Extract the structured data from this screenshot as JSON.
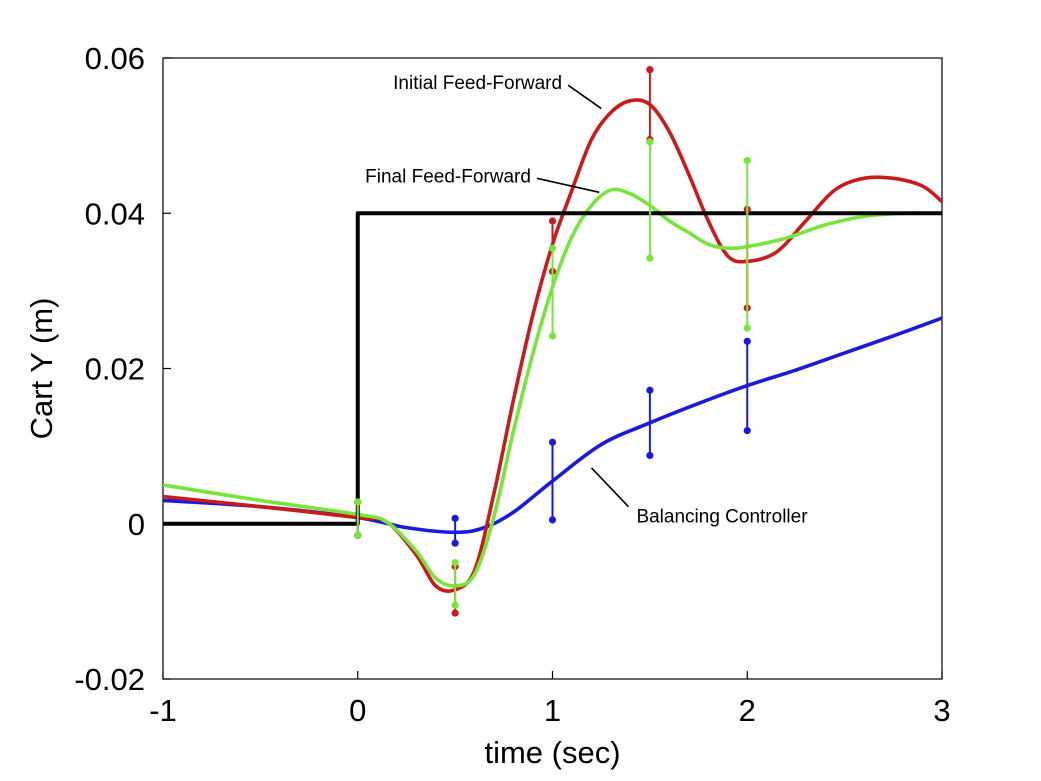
{
  "chart_data": {
    "type": "line",
    "xlabel": "time (sec)",
    "ylabel": "Cart Y (m)",
    "xlim": [
      -1,
      3
    ],
    "ylim": [
      -0.02,
      0.06
    ],
    "x_ticks": [
      {
        "value": -1,
        "label": "-1"
      },
      {
        "value": 0,
        "label": "0"
      },
      {
        "value": 1,
        "label": "1"
      },
      {
        "value": 2,
        "label": "2"
      },
      {
        "value": 3,
        "label": "3"
      }
    ],
    "y_ticks": [
      {
        "value": -0.02,
        "label": "-0.02"
      },
      {
        "value": 0,
        "label": "0"
      },
      {
        "value": 0.02,
        "label": "0.02"
      },
      {
        "value": 0.04,
        "label": "0.04"
      },
      {
        "value": 0.06,
        "label": "0.06"
      }
    ],
    "grid": false,
    "series": [
      {
        "key": "reference",
        "name": "",
        "color": "#000000",
        "points": [
          [
            -1,
            0
          ],
          [
            0,
            0
          ],
          [
            0,
            0.04
          ],
          [
            3,
            0.04
          ]
        ]
      },
      {
        "key": "balancing",
        "name": "Balancing Controller",
        "color": "#1a1adf",
        "points": [
          [
            -1,
            0.003
          ],
          [
            -0.5,
            0.0022
          ],
          [
            0,
            0.0008
          ],
          [
            0.25,
            -0.0005
          ],
          [
            0.5,
            -0.0011
          ],
          [
            0.65,
            -0.0005
          ],
          [
            0.8,
            0.0015
          ],
          [
            1.0,
            0.0055
          ],
          [
            1.25,
            0.0102
          ],
          [
            1.5,
            0.013
          ],
          [
            1.75,
            0.0155
          ],
          [
            2.0,
            0.0178
          ],
          [
            2.25,
            0.0198
          ],
          [
            2.5,
            0.022
          ],
          [
            2.75,
            0.0242
          ],
          [
            3.0,
            0.0265
          ]
        ],
        "error_bars": [
          {
            "x": 0.0,
            "low": -0.0015,
            "high": 0.0028
          },
          {
            "x": 0.5,
            "low": -0.0025,
            "high": 0.0007
          },
          {
            "x": 1.0,
            "low": 0.0005,
            "high": 0.0105
          },
          {
            "x": 1.5,
            "low": 0.0088,
            "high": 0.0172
          },
          {
            "x": 2.0,
            "low": 0.012,
            "high": 0.0235
          }
        ]
      },
      {
        "key": "initial_ff",
        "name": "Initial Feed-Forward",
        "color": "#cc1a1a",
        "points": [
          [
            -1,
            0.0035
          ],
          [
            -0.5,
            0.0022
          ],
          [
            0,
            0.0008
          ],
          [
            0.15,
            0.0002
          ],
          [
            0.3,
            -0.004
          ],
          [
            0.4,
            -0.008
          ],
          [
            0.5,
            -0.0085
          ],
          [
            0.6,
            -0.006
          ],
          [
            0.7,
            0.004
          ],
          [
            0.8,
            0.016
          ],
          [
            0.9,
            0.027
          ],
          [
            1.0,
            0.036
          ],
          [
            1.1,
            0.043
          ],
          [
            1.2,
            0.0495
          ],
          [
            1.3,
            0.053
          ],
          [
            1.4,
            0.0545
          ],
          [
            1.5,
            0.054
          ],
          [
            1.6,
            0.0505
          ],
          [
            1.7,
            0.045
          ],
          [
            1.8,
            0.039
          ],
          [
            1.9,
            0.0345
          ],
          [
            2.0,
            0.0338
          ],
          [
            2.15,
            0.035
          ],
          [
            2.3,
            0.039
          ],
          [
            2.45,
            0.043
          ],
          [
            2.6,
            0.0445
          ],
          [
            2.75,
            0.0445
          ],
          [
            2.9,
            0.0435
          ],
          [
            3.0,
            0.0415
          ]
        ],
        "error_bars": [
          {
            "x": 0.0,
            "low": -0.0015,
            "high": 0.0028
          },
          {
            "x": 0.5,
            "low": -0.0115,
            "high": -0.0055
          },
          {
            "x": 1.0,
            "low": 0.0325,
            "high": 0.039
          },
          {
            "x": 1.5,
            "low": 0.0495,
            "high": 0.0585
          },
          {
            "x": 2.0,
            "low": 0.0278,
            "high": 0.0405
          }
        ]
      },
      {
        "key": "final_ff",
        "name": "Final Feed-Forward",
        "color": "#77e63a",
        "points": [
          [
            -1,
            0.005
          ],
          [
            -0.5,
            0.003
          ],
          [
            0,
            0.0012
          ],
          [
            0.15,
            0.0002
          ],
          [
            0.3,
            -0.0035
          ],
          [
            0.4,
            -0.007
          ],
          [
            0.5,
            -0.008
          ],
          [
            0.6,
            -0.0065
          ],
          [
            0.7,
            0.001
          ],
          [
            0.8,
            0.012
          ],
          [
            0.9,
            0.022
          ],
          [
            1.0,
            0.0305
          ],
          [
            1.1,
            0.037
          ],
          [
            1.2,
            0.041
          ],
          [
            1.3,
            0.043
          ],
          [
            1.4,
            0.0425
          ],
          [
            1.5,
            0.041
          ],
          [
            1.6,
            0.039
          ],
          [
            1.7,
            0.0375
          ],
          [
            1.8,
            0.036
          ],
          [
            1.9,
            0.0355
          ],
          [
            2.0,
            0.0357
          ],
          [
            2.2,
            0.0368
          ],
          [
            2.4,
            0.0385
          ],
          [
            2.6,
            0.0396
          ],
          [
            2.8,
            0.04
          ],
          [
            3.0,
            0.04
          ]
        ],
        "error_bars": [
          {
            "x": 0.0,
            "low": -0.0015,
            "high": 0.0028
          },
          {
            "x": 0.5,
            "low": -0.0105,
            "high": -0.005
          },
          {
            "x": 1.0,
            "low": 0.0242,
            "high": 0.0355
          },
          {
            "x": 1.5,
            "low": 0.0342,
            "high": 0.0492
          },
          {
            "x": 2.0,
            "low": 0.0252,
            "high": 0.0468
          }
        ]
      }
    ],
    "annotations": [
      {
        "key": "initial_ff",
        "text": "Initial Feed-Forward",
        "line_from": [
          1.08,
          0.0565
        ],
        "line_to": [
          1.25,
          0.0535
        ]
      },
      {
        "key": "final_ff",
        "text": "Final Feed-Forward",
        "line_from": [
          0.92,
          0.0445
        ],
        "line_to": [
          1.24,
          0.0427
        ]
      },
      {
        "key": "balancing",
        "text": "Balancing Controller",
        "line_from": [
          1.2,
          0.0072
        ],
        "line_to": [
          1.39,
          0.0022
        ]
      }
    ]
  }
}
